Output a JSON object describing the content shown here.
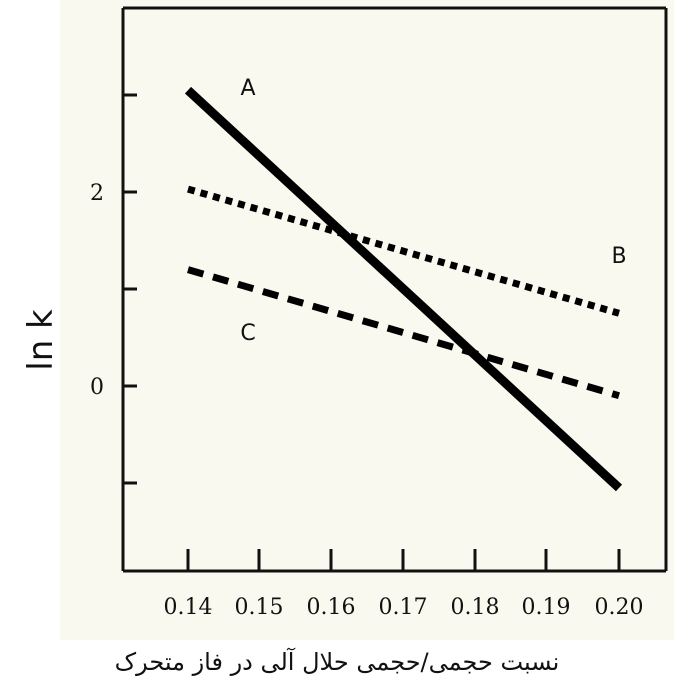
{
  "chart_data": {
    "type": "line",
    "xlabel": "نسبت حجمی/حجمی حلال آلی در فاز متحرک",
    "ylabel": "ln k",
    "x_ticks": [
      "0.14",
      "0.15",
      "0.16",
      "0.17",
      "0.18",
      "0.19",
      "0.20"
    ],
    "y_ticks": [
      "0",
      "2"
    ],
    "xlim": [
      0.14,
      0.2
    ],
    "ylim": [
      -2,
      4
    ],
    "grid": false,
    "series": [
      {
        "name": "A",
        "style": "solid",
        "x": [
          0.14,
          0.2
        ],
        "y": [
          3.05,
          -1.05
        ]
      },
      {
        "name": "B",
        "style": "dotted",
        "x": [
          0.14,
          0.2
        ],
        "y": [
          2.03,
          0.75
        ]
      },
      {
        "name": "C",
        "style": "dashed",
        "x": [
          0.14,
          0.2
        ],
        "y": [
          1.2,
          -0.1
        ]
      }
    ]
  }
}
